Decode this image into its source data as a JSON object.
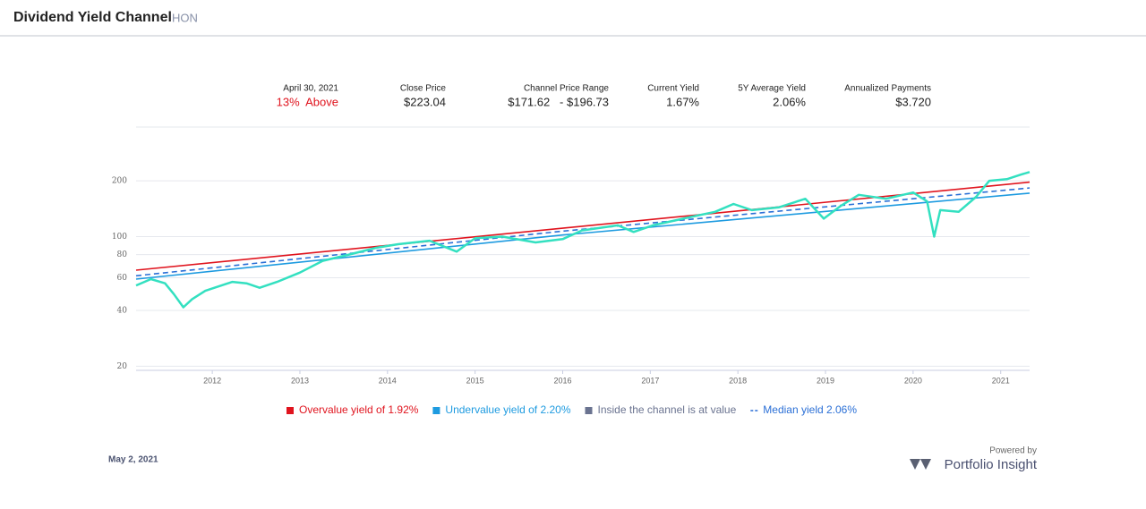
{
  "header": {
    "title": "Dividend Yield Channel",
    "ticker": "HON"
  },
  "stats": [
    {
      "label": "April 30, 2021",
      "value": "13%  Above"
    },
    {
      "label": "Close Price",
      "value": "$223.04"
    },
    {
      "label": "Channel Price Range",
      "value": "$171.62   - $196.73"
    },
    {
      "label": "Current Yield",
      "value": "1.67%"
    },
    {
      "label": "5Y Average Yield",
      "value": "2.06%"
    },
    {
      "label": "Annualized Payments",
      "value": "$3.720"
    }
  ],
  "chart_data": {
    "type": "line",
    "log_scale": true,
    "grid": true,
    "xlim": [
      2011.13,
      2021.33
    ],
    "xticks": [
      2012,
      2013,
      2014,
      2015,
      2016,
      2017,
      2018,
      2019,
      2020,
      2021
    ],
    "ylim": [
      19,
      390
    ],
    "yticks": [
      20,
      40,
      60,
      80,
      100,
      200
    ],
    "legend_note": "Inside the channel is at value",
    "series": [
      {
        "color": "#33e0c0",
        "x": [
          2011.13,
          2011.3,
          2011.46,
          2011.56,
          2011.67,
          2011.77,
          2011.92,
          2012.23,
          2012.39,
          2012.54,
          2012.74,
          2013.0,
          2013.26,
          2013.56,
          2013.87,
          2014.12,
          2014.48,
          2014.79,
          2015.0,
          2015.31,
          2015.69,
          2016.0,
          2016.22,
          2016.63,
          2016.81,
          2017.03,
          2017.44,
          2017.74,
          2017.95,
          2018.16,
          2018.47,
          2018.77,
          2018.98,
          2019.18,
          2019.38,
          2019.69,
          2020.0,
          2020.16,
          2020.24,
          2020.31,
          2020.52,
          2020.72,
          2020.87,
          2021.07,
          2021.23,
          2021.33
        ],
        "values": [
          54.5,
          59,
          56,
          49,
          41.6,
          46,
          51,
          57,
          56,
          53,
          57,
          64,
          74,
          80,
          87,
          91,
          95,
          83,
          98,
          100,
          93,
          97,
          108,
          115,
          106,
          115,
          127,
          136,
          150,
          139,
          144,
          160,
          125,
          147,
          168,
          160,
          173,
          155,
          100,
          139,
          136,
          164,
          200,
          204,
          216,
          223.04
        ]
      },
      {
        "name": "Overvalue yield of 1.92%",
        "color": "#e0141e",
        "x": [
          2011.13,
          2016.0,
          2021.33
        ],
        "values": [
          65.9,
          111,
          196.73
        ]
      },
      {
        "name": "Undervalue yield of 2.20%",
        "color": "#1e9be0",
        "x": [
          2011.13,
          2016.0,
          2021.33
        ],
        "values": [
          59,
          102,
          171.62
        ]
      },
      {
        "name": "Median yield 2.06%",
        "color": "#2a6fd6",
        "dashed": true,
        "x": [
          2011.13,
          2016.0,
          2021.33
        ],
        "values": [
          61.5,
          107,
          183
        ]
      }
    ]
  },
  "footer": {
    "date": "May 2, 2021",
    "powered": "Powered by",
    "brand": "Portfolio Insight"
  }
}
